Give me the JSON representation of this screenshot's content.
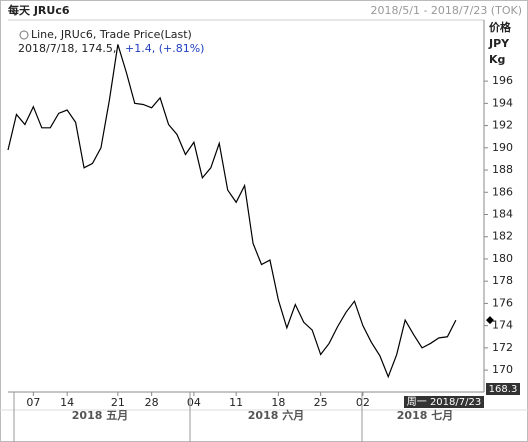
{
  "chart_data": {
    "type": "line",
    "title": "每天 JRUc6",
    "date_range": "2018/5/1 - 2018/7/23 (TOK)",
    "legend_title": "Line, JRUc6, Trade Price(Last)",
    "legend_detail": "2018/7/18, 174.5,",
    "legend_change": "+1.4, (+.81%)",
    "y_axis_label": [
      "价格",
      "JPY",
      "Kg"
    ],
    "cursor_date": "周一 2018/7/23",
    "cursor_value": 168.3,
    "months": [
      "2018 五月",
      "2018 六月",
      "2018 七月"
    ],
    "categories": [
      null,
      null,
      null,
      "07",
      null,
      null,
      null,
      "14",
      null,
      null,
      null,
      null,
      null,
      "21",
      null,
      null,
      null,
      "28",
      null,
      null,
      null,
      null,
      "04",
      null,
      null,
      null,
      null,
      "11",
      null,
      null,
      null,
      null,
      "18",
      null,
      null,
      null,
      null,
      "25",
      null,
      null,
      null,
      null,
      "02",
      null,
      null,
      null,
      null,
      null,
      null,
      null,
      null,
      null,
      null,
      null
    ],
    "series": [
      {
        "name": "JRUc6",
        "color": "#000000",
        "values": [
          189.8,
          193.0,
          192.1,
          193.7,
          191.8,
          191.8,
          193.1,
          193.4,
          192.3,
          188.2,
          188.6,
          190.0,
          194.3,
          199.3,
          196.8,
          194.0,
          193.9,
          193.6,
          194.5,
          192.1,
          191.2,
          189.4,
          190.5,
          187.3,
          188.2,
          190.4,
          186.2,
          185.1,
          186.6,
          181.4,
          179.5,
          179.9,
          176.3,
          173.8,
          175.9,
          174.3,
          173.6,
          171.4,
          172.4,
          173.9,
          175.2,
          176.2,
          174.0,
          172.5,
          171.3,
          169.4,
          171.4,
          174.5,
          173.2,
          172.0,
          172.4,
          172.9,
          173.0,
          174.5
        ]
      }
    ],
    "ylim": [
      168.3,
      201.5
    ],
    "yticks": [
      170,
      172,
      174,
      176,
      178,
      180,
      182,
      184,
      186,
      188,
      190,
      192,
      194,
      196
    ]
  }
}
